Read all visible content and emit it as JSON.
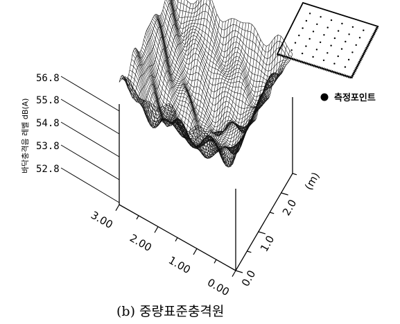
{
  "chart_data": {
    "type": "surface3d",
    "caption": "(b) 중량표준충격원",
    "zlabel": "바닥충격음 레벨 dB(A)",
    "z_ticks": [
      "56.8",
      "55.8",
      "54.8",
      "53.8",
      "52.8"
    ],
    "x_ticks": [
      "3.00",
      "2.00",
      "1.00",
      "0.00"
    ],
    "y_ticks": [
      "0.0",
      "1.0",
      "2.0"
    ],
    "y_unit": "(m)",
    "zlim": [
      52.8,
      56.8
    ],
    "legend": [
      {
        "marker": "●",
        "label": "측정포인트"
      }
    ]
  }
}
